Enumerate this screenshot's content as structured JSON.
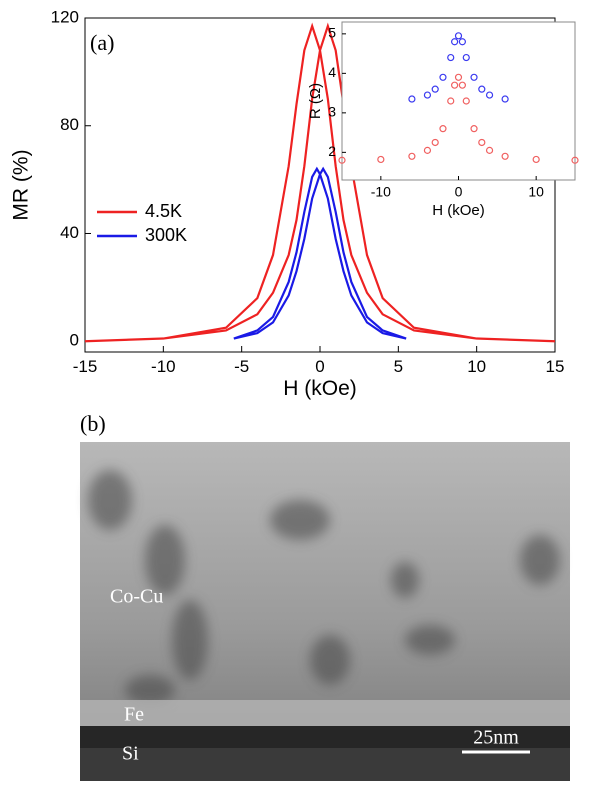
{
  "chart_data": [
    {
      "type": "line",
      "annotation": "(a)",
      "xlabel": "H (kOe)",
      "ylabel": "MR (%)",
      "xlim": [
        -15,
        15
      ],
      "xticks": [
        -15,
        -10,
        -5,
        0,
        5,
        10,
        15
      ],
      "ylim": [
        -4,
        120
      ],
      "yticks": [
        0,
        40,
        80,
        120
      ],
      "legend": "center left",
      "series": [
        {
          "name": "4.5K",
          "color": "#ee2222",
          "x": [
            15,
            10,
            6,
            4,
            3,
            2,
            1.5,
            1,
            0.5,
            0,
            -0.5,
            -1,
            -1.5,
            -2,
            -3,
            -4,
            -6,
            -10,
            -15,
            -10,
            -6,
            -4,
            -3,
            -2,
            -1.5,
            -1,
            -0.5,
            0,
            0.5,
            1,
            1.5,
            2,
            3,
            4,
            6,
            10,
            15
          ],
          "values": [
            0,
            1,
            4,
            10,
            18,
            32,
            45,
            65,
            90,
            108,
            117,
            108,
            88,
            65,
            32,
            16,
            5,
            1,
            0,
            1,
            4,
            10,
            18,
            32,
            45,
            65,
            90,
            108,
            117,
            108,
            88,
            65,
            32,
            16,
            5,
            1,
            0
          ]
        },
        {
          "name": "300K",
          "color": "#1a1ae6",
          "x": [
            5.5,
            4,
            3,
            2,
            1.5,
            1,
            0.5,
            0,
            -0.2,
            -0.5,
            -1,
            -1.5,
            -2,
            -3,
            -4,
            -5.5,
            -4,
            -3,
            -2,
            -1.5,
            -1,
            -0.5,
            0,
            0.2,
            0.5,
            1,
            1.5,
            2,
            3,
            4,
            5.5
          ],
          "values": [
            1,
            3,
            7,
            17,
            26,
            38,
            53,
            62,
            64,
            61,
            48,
            33,
            22,
            9,
            4,
            1,
            3,
            7,
            17,
            26,
            38,
            53,
            62,
            64,
            61,
            48,
            33,
            22,
            9,
            4,
            1
          ]
        }
      ]
    },
    {
      "type": "scatter",
      "xlabel": "H (kOe)",
      "ylabel": "R (Ω)",
      "xlim": [
        -15,
        15
      ],
      "xticks": [
        -10,
        0,
        10
      ],
      "ylim": [
        1.3,
        5.3
      ],
      "yticks": [
        2,
        3,
        4,
        5
      ],
      "series": [
        {
          "color": "#3a3af0",
          "x": [
            -6,
            -4,
            -3,
            -2,
            -1,
            -0.5,
            0,
            0.5,
            1,
            2,
            3,
            4,
            6
          ],
          "values": [
            3.35,
            3.45,
            3.6,
            3.9,
            4.4,
            4.8,
            4.95,
            4.8,
            4.4,
            3.9,
            3.6,
            3.45,
            3.35
          ]
        },
        {
          "color": "#f06060",
          "x": [
            -15,
            -10,
            -6,
            -4,
            -3,
            -2,
            -1,
            -0.5,
            0,
            0.5,
            1,
            2,
            3,
            4,
            6,
            10,
            15
          ],
          "values": [
            1.8,
            1.82,
            1.9,
            2.05,
            2.25,
            2.6,
            3.3,
            3.7,
            3.9,
            3.7,
            3.3,
            2.6,
            2.25,
            2.05,
            1.9,
            1.82,
            1.8
          ]
        }
      ]
    }
  ],
  "panel_b": {
    "label": "(b)",
    "layers": [
      "Co-Cu",
      "Fe",
      "Si"
    ],
    "scale_bar": "25nm"
  }
}
